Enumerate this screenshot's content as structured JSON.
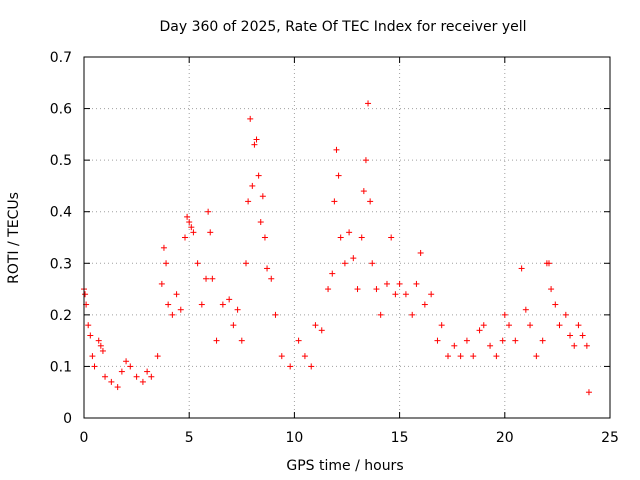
{
  "chart_data": {
    "type": "scatter",
    "title": "Day 360 of 2025, Rate Of TEC Index for receiver yell",
    "xlabel": "GPS time / hours",
    "ylabel": "ROTI / TECUs",
    "xlim": [
      0,
      25
    ],
    "ylim": [
      0,
      0.7
    ],
    "xticks": [
      "0",
      "5",
      "10",
      "15",
      "20",
      "25"
    ],
    "yticks": [
      "0",
      "0.1",
      "0.2",
      "0.3",
      "0.4",
      "0.5",
      "0.6",
      "0.7"
    ],
    "grid": true,
    "marker": "+",
    "color": "#ff0000",
    "points": [
      [
        0.0,
        0.25
      ],
      [
        0.05,
        0.24
      ],
      [
        0.1,
        0.22
      ],
      [
        0.2,
        0.18
      ],
      [
        0.3,
        0.16
      ],
      [
        0.4,
        0.12
      ],
      [
        0.5,
        0.1
      ],
      [
        0.7,
        0.15
      ],
      [
        0.8,
        0.14
      ],
      [
        0.9,
        0.13
      ],
      [
        1.0,
        0.08
      ],
      [
        1.3,
        0.07
      ],
      [
        1.6,
        0.06
      ],
      [
        1.8,
        0.09
      ],
      [
        2.0,
        0.11
      ],
      [
        2.2,
        0.1
      ],
      [
        2.5,
        0.08
      ],
      [
        2.8,
        0.07
      ],
      [
        3.0,
        0.09
      ],
      [
        3.2,
        0.08
      ],
      [
        3.5,
        0.12
      ],
      [
        3.7,
        0.26
      ],
      [
        3.8,
        0.33
      ],
      [
        3.9,
        0.3
      ],
      [
        4.0,
        0.22
      ],
      [
        4.2,
        0.2
      ],
      [
        4.4,
        0.24
      ],
      [
        4.6,
        0.21
      ],
      [
        4.8,
        0.35
      ],
      [
        4.9,
        0.39
      ],
      [
        5.0,
        0.38
      ],
      [
        5.1,
        0.37
      ],
      [
        5.2,
        0.36
      ],
      [
        5.4,
        0.3
      ],
      [
        5.6,
        0.22
      ],
      [
        5.8,
        0.27
      ],
      [
        5.9,
        0.4
      ],
      [
        6.0,
        0.36
      ],
      [
        6.1,
        0.27
      ],
      [
        6.3,
        0.15
      ],
      [
        6.6,
        0.22
      ],
      [
        6.9,
        0.23
      ],
      [
        7.1,
        0.18
      ],
      [
        7.3,
        0.21
      ],
      [
        7.5,
        0.15
      ],
      [
        7.7,
        0.3
      ],
      [
        7.8,
        0.42
      ],
      [
        7.9,
        0.58
      ],
      [
        8.0,
        0.45
      ],
      [
        8.1,
        0.53
      ],
      [
        8.2,
        0.54
      ],
      [
        8.3,
        0.47
      ],
      [
        8.4,
        0.38
      ],
      [
        8.5,
        0.43
      ],
      [
        8.6,
        0.35
      ],
      [
        8.7,
        0.29
      ],
      [
        8.9,
        0.27
      ],
      [
        9.1,
        0.2
      ],
      [
        9.4,
        0.12
      ],
      [
        9.8,
        0.1
      ],
      [
        10.2,
        0.15
      ],
      [
        10.5,
        0.12
      ],
      [
        10.8,
        0.1
      ],
      [
        11.0,
        0.18
      ],
      [
        11.3,
        0.17
      ],
      [
        11.6,
        0.25
      ],
      [
        11.8,
        0.28
      ],
      [
        11.9,
        0.42
      ],
      [
        12.0,
        0.52
      ],
      [
        12.1,
        0.47
      ],
      [
        12.2,
        0.35
      ],
      [
        12.4,
        0.3
      ],
      [
        12.6,
        0.36
      ],
      [
        12.8,
        0.31
      ],
      [
        13.0,
        0.25
      ],
      [
        13.2,
        0.35
      ],
      [
        13.3,
        0.44
      ],
      [
        13.4,
        0.5
      ],
      [
        13.5,
        0.61
      ],
      [
        13.6,
        0.42
      ],
      [
        13.7,
        0.3
      ],
      [
        13.9,
        0.25
      ],
      [
        14.1,
        0.2
      ],
      [
        14.4,
        0.26
      ],
      [
        14.6,
        0.35
      ],
      [
        14.8,
        0.24
      ],
      [
        15.0,
        0.26
      ],
      [
        15.3,
        0.24
      ],
      [
        15.6,
        0.2
      ],
      [
        15.8,
        0.26
      ],
      [
        16.0,
        0.32
      ],
      [
        16.2,
        0.22
      ],
      [
        16.5,
        0.24
      ],
      [
        16.8,
        0.15
      ],
      [
        17.0,
        0.18
      ],
      [
        17.3,
        0.12
      ],
      [
        17.6,
        0.14
      ],
      [
        17.9,
        0.12
      ],
      [
        18.2,
        0.15
      ],
      [
        18.5,
        0.12
      ],
      [
        18.8,
        0.17
      ],
      [
        19.0,
        0.18
      ],
      [
        19.3,
        0.14
      ],
      [
        19.6,
        0.12
      ],
      [
        19.9,
        0.15
      ],
      [
        20.0,
        0.2
      ],
      [
        20.2,
        0.18
      ],
      [
        20.5,
        0.15
      ],
      [
        20.8,
        0.29
      ],
      [
        21.0,
        0.21
      ],
      [
        21.2,
        0.18
      ],
      [
        21.5,
        0.12
      ],
      [
        21.8,
        0.15
      ],
      [
        22.0,
        0.3
      ],
      [
        22.1,
        0.3
      ],
      [
        22.2,
        0.25
      ],
      [
        22.4,
        0.22
      ],
      [
        22.6,
        0.18
      ],
      [
        22.9,
        0.2
      ],
      [
        23.1,
        0.16
      ],
      [
        23.3,
        0.14
      ],
      [
        23.5,
        0.18
      ],
      [
        23.7,
        0.16
      ],
      [
        23.9,
        0.14
      ],
      [
        24.0,
        0.05
      ]
    ]
  }
}
